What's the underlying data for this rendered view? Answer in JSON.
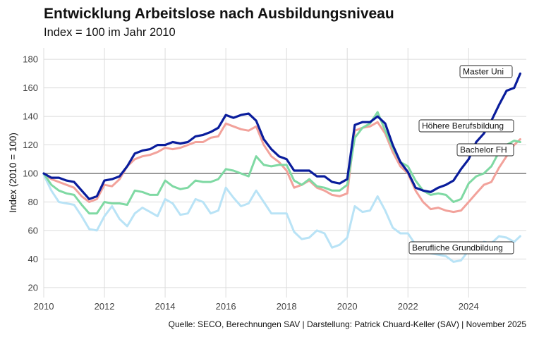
{
  "chart_data": {
    "type": "line",
    "title": "Entwicklung Arbeitslose nach Ausbildungsniveau",
    "subtitle": "Index = 100 im Jahr 2010",
    "ylabel": "Index (2010 = 100)",
    "xlabel": "",
    "source": "Quelle: SECO, Berechnungen SAV | Darstellung: Patrick Chuard-Keller (SAV) | November 2025",
    "xlim": [
      2010,
      2025.9
    ],
    "ylim": [
      13,
      188
    ],
    "xticks": [
      "2010",
      "2012",
      "2014",
      "2016",
      "2018",
      "2020",
      "2022",
      "2024"
    ],
    "yticks": [
      "20",
      "40",
      "60",
      "80",
      "100",
      "120",
      "140",
      "160",
      "180"
    ],
    "reference_line": 100,
    "grid": true,
    "legend": "direct labels at line ends",
    "series": [
      {
        "name": "Berufliche Grundbildung",
        "color": "#b9e3f6",
        "x": [
          2010.0,
          2010.25,
          2010.5,
          2010.75,
          2011.0,
          2011.25,
          2011.5,
          2011.75,
          2012.0,
          2012.25,
          2012.5,
          2012.75,
          2013.0,
          2013.25,
          2013.5,
          2013.75,
          2014.0,
          2014.25,
          2014.5,
          2014.75,
          2015.0,
          2015.25,
          2015.5,
          2015.75,
          2016.0,
          2016.25,
          2016.5,
          2016.75,
          2017.0,
          2017.25,
          2017.5,
          2017.75,
          2018.0,
          2018.25,
          2018.5,
          2018.75,
          2019.0,
          2019.25,
          2019.5,
          2019.75,
          2020.0,
          2020.25,
          2020.5,
          2020.75,
          2021.0,
          2021.25,
          2021.5,
          2021.75,
          2022.0,
          2022.25,
          2022.5,
          2022.75,
          2023.0,
          2023.25,
          2023.5,
          2023.75,
          2024.0,
          2024.25,
          2024.5,
          2024.75,
          2025.0,
          2025.25,
          2025.5,
          2025.7
        ],
        "values": [
          99,
          88,
          80,
          79,
          78,
          70,
          61,
          60,
          70,
          77,
          68,
          63,
          72,
          76,
          73,
          70,
          82,
          79,
          71,
          72,
          82,
          80,
          72,
          74,
          90,
          83,
          77,
          79,
          88,
          80,
          72,
          72,
          72,
          59,
          54,
          55,
          60,
          58,
          48,
          50,
          55,
          77,
          73,
          74,
          84,
          74,
          62,
          58,
          58,
          50,
          45,
          44,
          43,
          42,
          38,
          39,
          46,
          48,
          52,
          51,
          56,
          55,
          52,
          56
        ]
      },
      {
        "name": "Bachelor FH",
        "color": "#f2a29b",
        "x": [
          2010.0,
          2010.25,
          2010.5,
          2010.75,
          2011.0,
          2011.25,
          2011.5,
          2011.75,
          2012.0,
          2012.25,
          2012.5,
          2012.75,
          2013.0,
          2013.25,
          2013.5,
          2013.75,
          2014.0,
          2014.25,
          2014.5,
          2014.75,
          2015.0,
          2015.25,
          2015.5,
          2015.75,
          2016.0,
          2016.25,
          2016.5,
          2016.75,
          2017.0,
          2017.25,
          2017.5,
          2017.75,
          2018.0,
          2018.25,
          2018.5,
          2018.75,
          2019.0,
          2019.25,
          2019.5,
          2019.75,
          2020.0,
          2020.25,
          2020.5,
          2020.75,
          2021.0,
          2021.25,
          2021.5,
          2021.75,
          2022.0,
          2022.25,
          2022.5,
          2022.75,
          2023.0,
          2023.25,
          2023.5,
          2023.75,
          2024.0,
          2024.25,
          2024.5,
          2024.75,
          2025.0,
          2025.25,
          2025.5,
          2025.7
        ],
        "values": [
          100,
          96,
          94,
          92,
          90,
          84,
          80,
          82,
          92,
          91,
          96,
          105,
          110,
          112,
          113,
          115,
          118,
          117,
          118,
          120,
          122,
          122,
          125,
          126,
          135,
          133,
          131,
          130,
          133,
          120,
          112,
          108,
          102,
          90,
          92,
          95,
          90,
          88,
          85,
          84,
          86,
          130,
          132,
          133,
          136,
          128,
          115,
          105,
          100,
          88,
          80,
          75,
          76,
          74,
          73,
          74,
          80,
          86,
          92,
          94,
          104,
          112,
          120,
          124
        ]
      },
      {
        "name": "Höhere Berufsbildung",
        "color": "#7fd9a3",
        "x": [
          2010.0,
          2010.25,
          2010.5,
          2010.75,
          2011.0,
          2011.25,
          2011.5,
          2011.75,
          2012.0,
          2012.25,
          2012.5,
          2012.75,
          2013.0,
          2013.25,
          2013.5,
          2013.75,
          2014.0,
          2014.25,
          2014.5,
          2014.75,
          2015.0,
          2015.25,
          2015.5,
          2015.75,
          2016.0,
          2016.25,
          2016.5,
          2016.75,
          2017.0,
          2017.25,
          2017.5,
          2017.75,
          2018.0,
          2018.25,
          2018.5,
          2018.75,
          2019.0,
          2019.25,
          2019.5,
          2019.75,
          2020.0,
          2020.25,
          2020.5,
          2020.75,
          2021.0,
          2021.25,
          2021.5,
          2021.75,
          2022.0,
          2022.25,
          2022.5,
          2022.75,
          2023.0,
          2023.25,
          2023.5,
          2023.75,
          2024.0,
          2024.25,
          2024.5,
          2024.75,
          2025.0,
          2025.25,
          2025.5,
          2025.7
        ],
        "values": [
          100,
          92,
          88,
          86,
          85,
          78,
          72,
          72,
          80,
          79,
          79,
          78,
          88,
          87,
          85,
          85,
          95,
          91,
          89,
          90,
          95,
          94,
          94,
          96,
          103,
          102,
          100,
          98,
          112,
          106,
          105,
          106,
          106,
          95,
          92,
          96,
          91,
          90,
          88,
          88,
          92,
          125,
          132,
          135,
          143,
          130,
          118,
          108,
          105,
          95,
          88,
          85,
          86,
          85,
          80,
          82,
          93,
          98,
          100,
          105,
          115,
          120,
          123,
          122
        ]
      },
      {
        "name": "Master Uni",
        "color": "#0a1d9c",
        "x": [
          2010.0,
          2010.25,
          2010.5,
          2010.75,
          2011.0,
          2011.25,
          2011.5,
          2011.75,
          2012.0,
          2012.25,
          2012.5,
          2012.75,
          2013.0,
          2013.25,
          2013.5,
          2013.75,
          2014.0,
          2014.25,
          2014.5,
          2014.75,
          2015.0,
          2015.25,
          2015.5,
          2015.75,
          2016.0,
          2016.25,
          2016.5,
          2016.75,
          2017.0,
          2017.25,
          2017.5,
          2017.75,
          2018.0,
          2018.25,
          2018.5,
          2018.75,
          2019.0,
          2019.25,
          2019.5,
          2019.75,
          2020.0,
          2020.25,
          2020.5,
          2020.75,
          2021.0,
          2021.25,
          2021.5,
          2021.75,
          2022.0,
          2022.25,
          2022.5,
          2022.75,
          2023.0,
          2023.25,
          2023.5,
          2023.75,
          2024.0,
          2024.25,
          2024.5,
          2024.75,
          2025.0,
          2025.25,
          2025.5,
          2025.7
        ],
        "values": [
          100,
          97,
          97,
          95,
          94,
          88,
          82,
          84,
          95,
          96,
          98,
          105,
          114,
          116,
          117,
          120,
          120,
          122,
          121,
          122,
          126,
          127,
          129,
          132,
          141,
          139,
          141,
          142,
          137,
          124,
          117,
          112,
          110,
          102,
          102,
          102,
          98,
          98,
          94,
          93,
          96,
          134,
          136,
          136,
          140,
          135,
          120,
          108,
          101,
          90,
          88,
          87,
          90,
          92,
          95,
          103,
          110,
          122,
          128,
          137,
          148,
          158,
          160,
          170
        ]
      }
    ],
    "labels": {
      "master": "Master Uni",
      "hoehere": "Höhere Berufsbildung",
      "bachelor": "Bachelor FH",
      "grund": "Berufliche Grundbildung"
    }
  }
}
